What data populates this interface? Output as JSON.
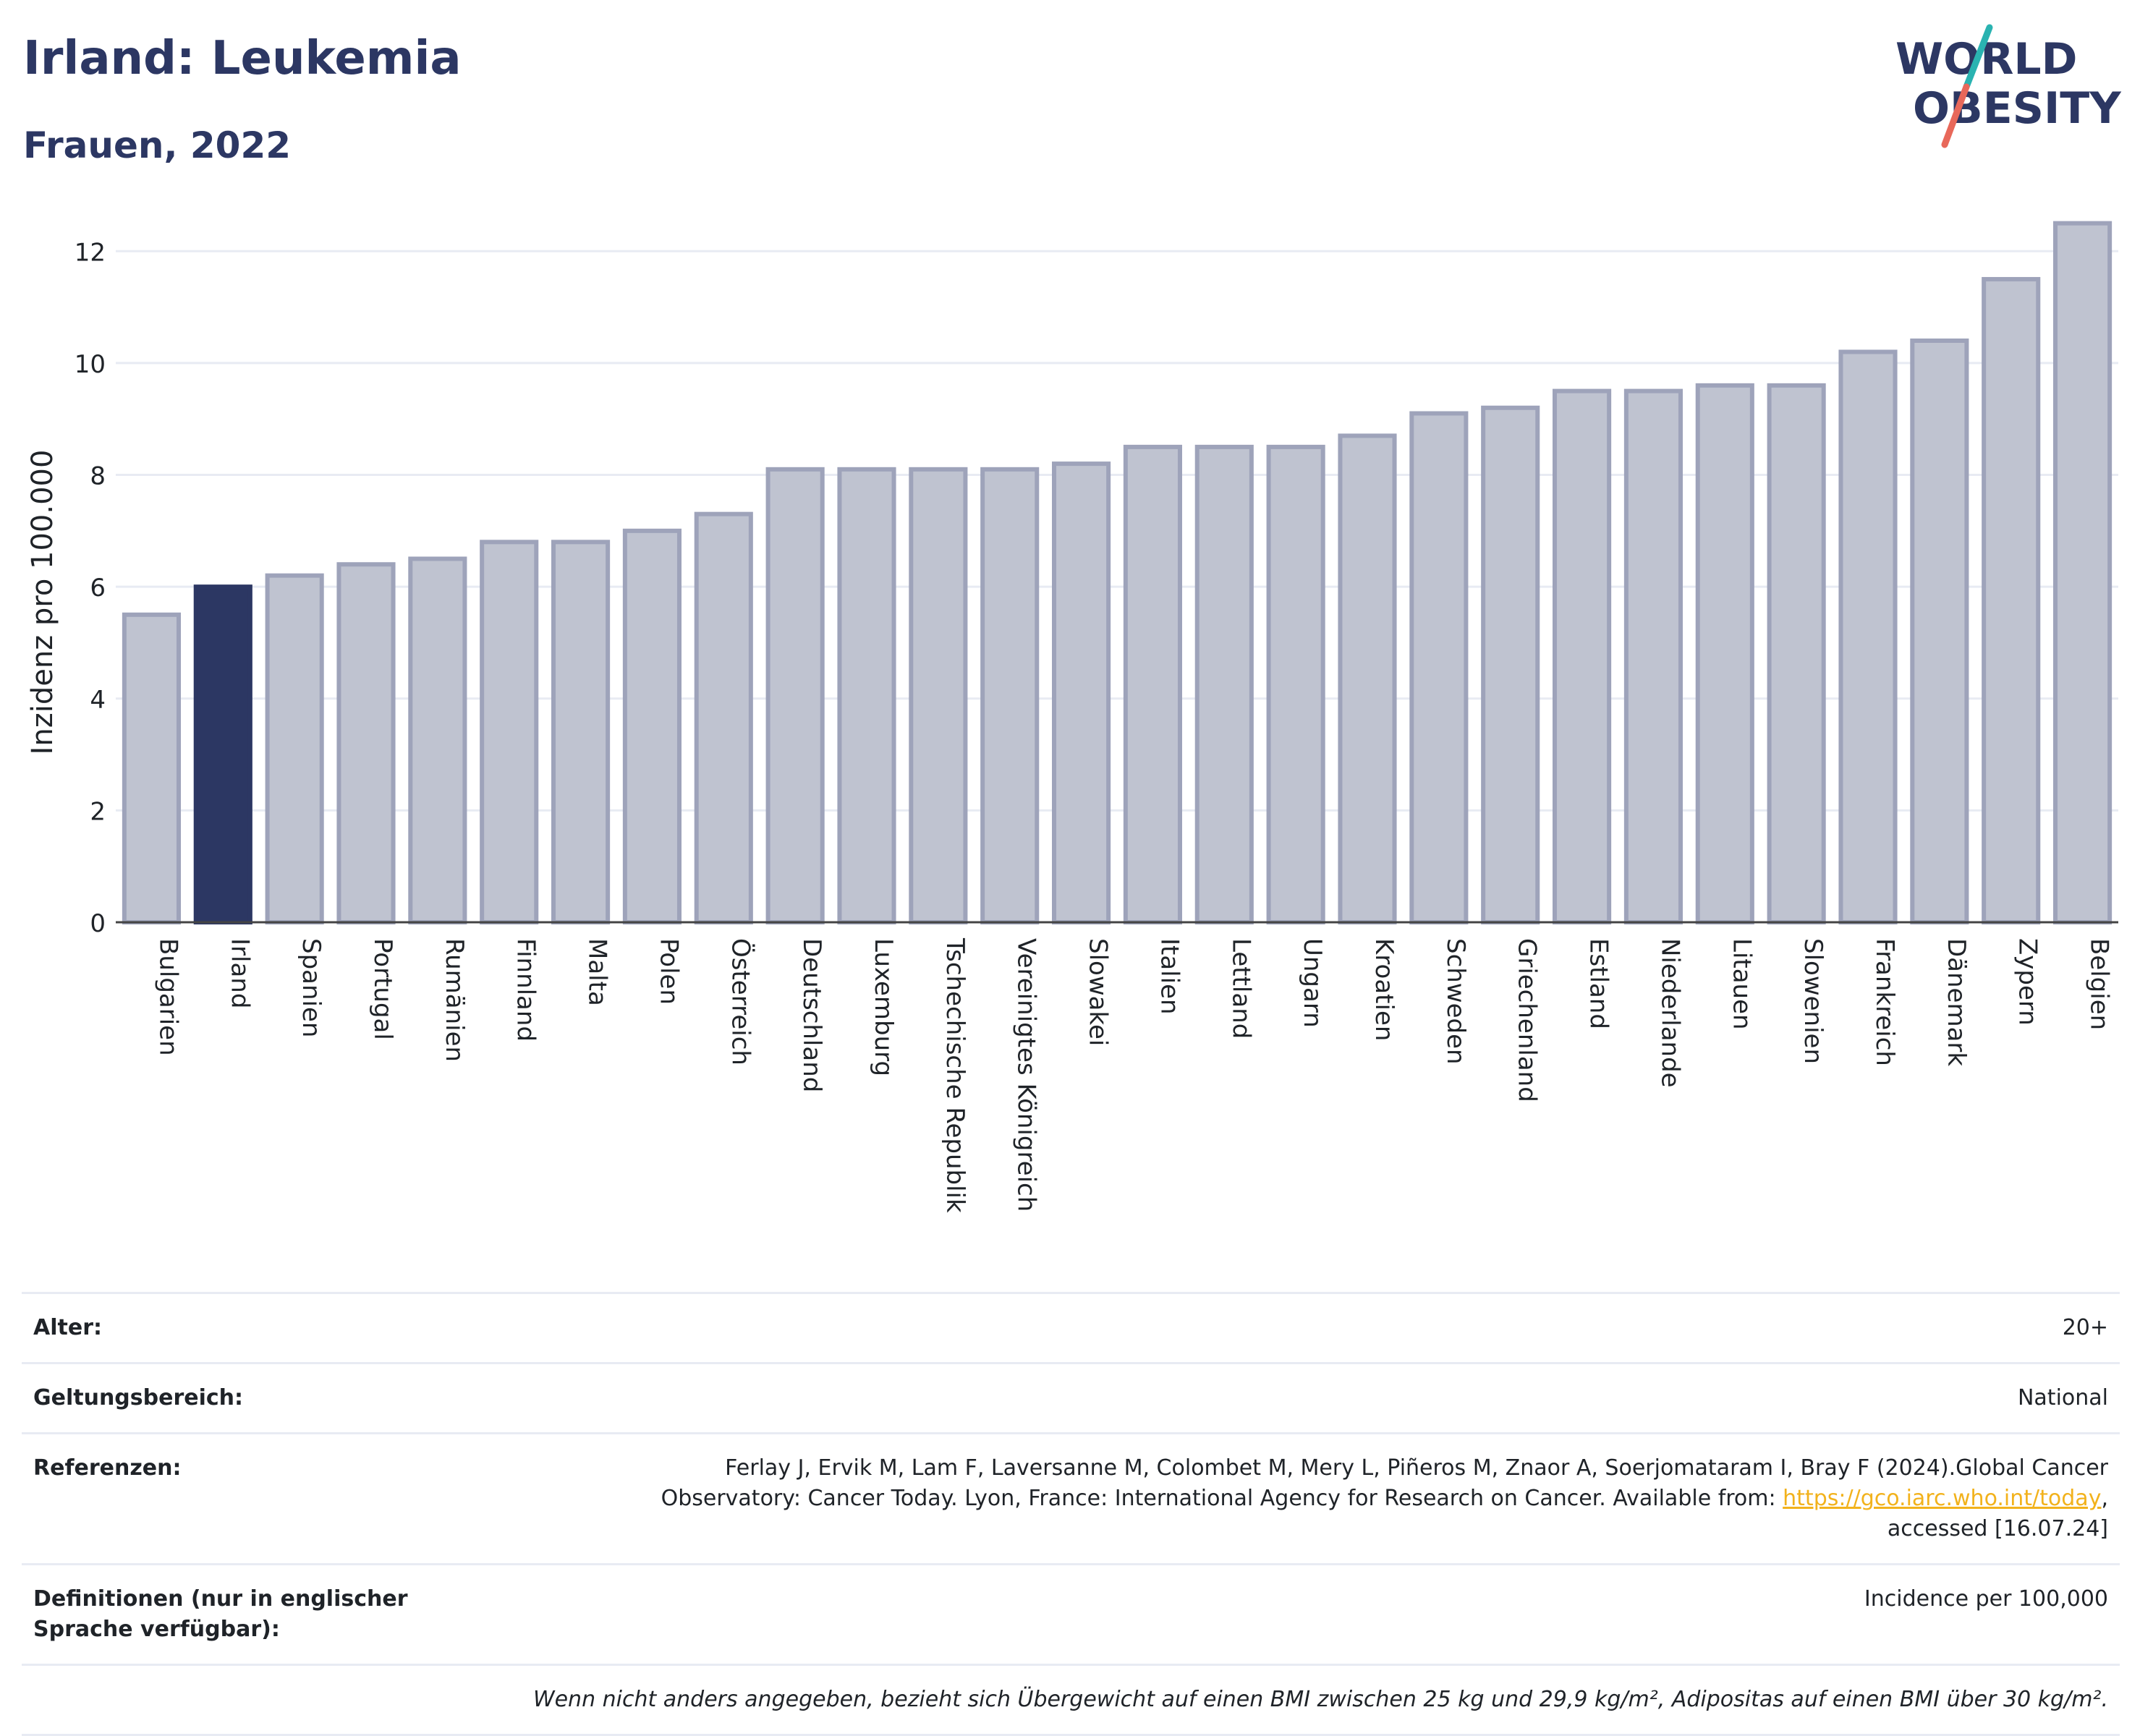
{
  "header": {
    "title": "Irland: Leukemia",
    "subtitle": "Frauen, 2022"
  },
  "logo": {
    "line1": "WORLD",
    "line2": "OBESITY",
    "colors": {
      "text": "#2c3763",
      "slash_teal": "#2ab3b1",
      "slash_coral": "#e8685a"
    }
  },
  "chart_data": {
    "type": "bar",
    "ylabel": "Inzidenz pro 100.000",
    "xlabel": "",
    "ylim": [
      0,
      13
    ],
    "yticks": [
      0,
      2,
      4,
      6,
      8,
      10,
      12
    ],
    "grid": true,
    "highlight": "Irland",
    "colors": {
      "bar": "#bfc3d0",
      "bar_edge": "#9ea3ba",
      "highlight": "#2c3763",
      "grid": "#e8ebf3",
      "axis": "#444444"
    },
    "categories": [
      "Bulgarien",
      "Irland",
      "Spanien",
      "Portugal",
      "Rumänien",
      "Finnland",
      "Malta",
      "Polen",
      "Österreich",
      "Deutschland",
      "Luxemburg",
      "Tschechische Republik",
      "Vereinigtes Königreich",
      "Slowakei",
      "Italien",
      "Lettland",
      "Ungarn",
      "Kroatien",
      "Schweden",
      "Griechenland",
      "Estland",
      "Niederlande",
      "Litauen",
      "Slowenien",
      "Frankreich",
      "Dänemark",
      "Zypern",
      "Belgien"
    ],
    "values": [
      5.5,
      6.0,
      6.2,
      6.4,
      6.5,
      6.8,
      6.8,
      7.0,
      7.3,
      8.1,
      8.1,
      8.1,
      8.1,
      8.2,
      8.5,
      8.5,
      8.5,
      8.7,
      9.1,
      9.2,
      9.5,
      9.5,
      9.6,
      9.6,
      10.2,
      10.4,
      11.5,
      12.5
    ]
  },
  "meta": {
    "age_label": "Alter:",
    "age_value": "20+",
    "scope_label": "Geltungsbereich:",
    "scope_value": "National",
    "ref_label": "Referenzen:",
    "ref_text_1": "Ferlay J, Ervik M, Lam F, Laversanne M, Colombet M, Mery L, Piñeros M, Znaor A, Soerjomataram I, Bray F (2024).Global Cancer",
    "ref_text_2": "Observatory: Cancer Today. Lyon, France: International Agency for Research on Cancer. Available from: ",
    "ref_link": "https://gco.iarc.who.int/today",
    "ref_text_3": ",",
    "ref_text_4": "accessed [16.07.24]",
    "def_label": "Definitionen (nur in englischer Sprache verfügbar):",
    "def_value": "Incidence per 100,000",
    "footnote": "Wenn nicht anders angegeben, bezieht sich Übergewicht auf einen BMI zwischen 25 kg und 29,9 kg/m², Adipositas auf einen BMI über 30 kg/m²."
  }
}
